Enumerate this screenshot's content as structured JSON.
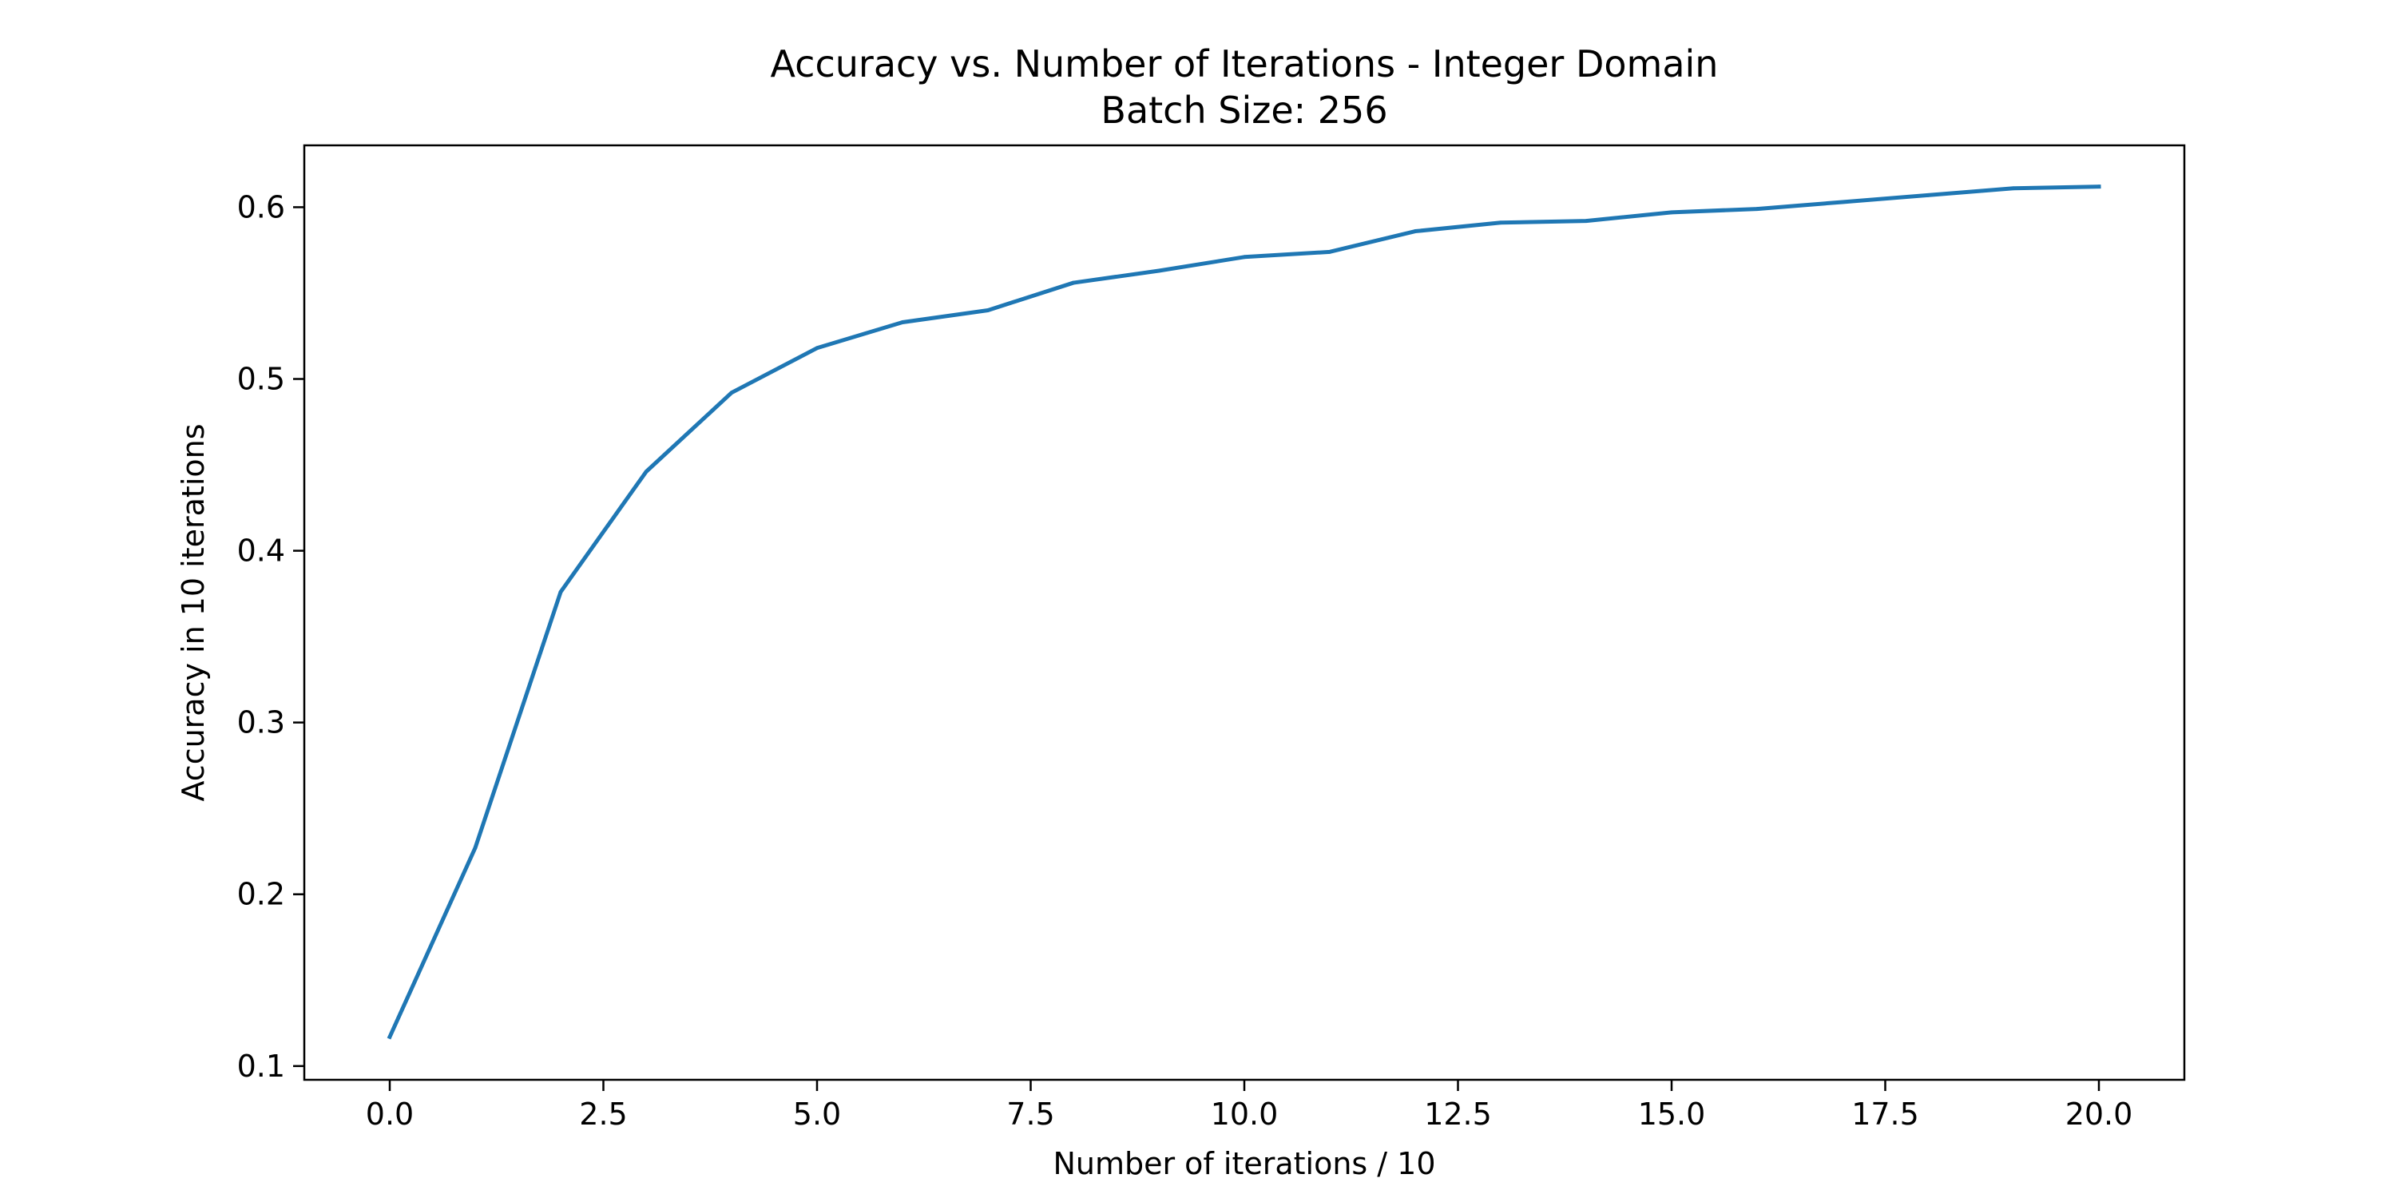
{
  "colors": {
    "background": "#ffffff",
    "series_line": "#1f77b4",
    "axis": "#000000"
  },
  "chart_data": {
    "type": "line",
    "title": "Accuracy vs. Number of Iterations - Integer Domain",
    "subtitle": "Batch Size: 256",
    "xlabel": "Number of iterations / 10",
    "ylabel": "Accuracy in 10 iterations",
    "xlim": [
      -1.0,
      21.0
    ],
    "ylim": [
      0.092,
      0.636
    ],
    "grid": false,
    "x_ticks": [
      0.0,
      2.5,
      5.0,
      7.5,
      10.0,
      12.5,
      15.0,
      17.5,
      20.0
    ],
    "x_tick_labels": [
      "0.0",
      "2.5",
      "5.0",
      "7.5",
      "10.0",
      "12.5",
      "15.0",
      "17.5",
      "20.0"
    ],
    "y_ticks": [
      0.1,
      0.2,
      0.3,
      0.4,
      0.5,
      0.6
    ],
    "y_tick_labels": [
      "0.1",
      "0.2",
      "0.3",
      "0.4",
      "0.5",
      "0.6"
    ],
    "series": [
      {
        "name": "Accuracy",
        "x": [
          0,
          1,
          2,
          3,
          4,
          5,
          6,
          7,
          8,
          9,
          10,
          11,
          12,
          13,
          14,
          15,
          16,
          17,
          18,
          19,
          20
        ],
        "values": [
          0.117,
          0.227,
          0.376,
          0.446,
          0.492,
          0.518,
          0.533,
          0.54,
          0.556,
          0.563,
          0.571,
          0.574,
          0.586,
          0.591,
          0.592,
          0.597,
          0.599,
          0.603,
          0.607,
          0.611,
          0.612
        ]
      }
    ]
  }
}
